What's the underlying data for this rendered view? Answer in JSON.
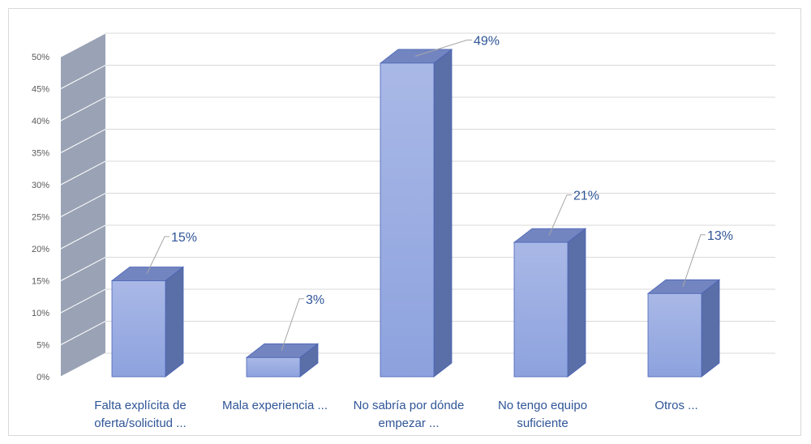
{
  "chart_data": {
    "type": "bar",
    "categories": [
      [
        "Falta explícita de",
        "oferta/solicitud ..."
      ],
      [
        "Mala experiencia ..."
      ],
      [
        "No sabría por dónde",
        "empezar ..."
      ],
      [
        "No tengo equipo",
        "suficiente"
      ],
      [
        "Otros ..."
      ]
    ],
    "values": [
      15,
      3,
      49,
      21,
      13
    ],
    "data_labels": [
      "15%",
      "3%",
      "49%",
      "21%",
      "13%"
    ],
    "y_ticks": [
      "0%",
      "5%",
      "10%",
      "15%",
      "20%",
      "25%",
      "30%",
      "35%",
      "40%",
      "45%",
      "50%"
    ],
    "ylim": [
      0,
      50
    ],
    "title": "",
    "xlabel": "",
    "ylabel": "",
    "grid": true,
    "three_d": true,
    "legend": "none",
    "colors": {
      "bar_front_top": "#a9b8e6",
      "bar_front_bottom": "#8da2de",
      "bar_side": "#5a6ea8",
      "bar_top": "#7385c0",
      "bar_outline": "#4a64b5",
      "back_wall": "#9aa3b5",
      "gridline": "#d9d9d9",
      "label_text": "#2f5597",
      "tick_text": "#595959",
      "leader_line": "#a6a6a6"
    }
  }
}
